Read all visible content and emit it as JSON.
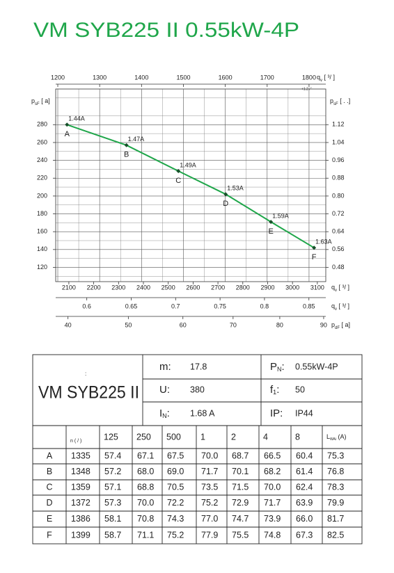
{
  "title": "VM SYB225 II 0.55kW-4P",
  "chart_data": {
    "type": "line",
    "x": [
      1222,
      1364,
      1488,
      1601,
      1709,
      1812
    ],
    "series": [
      {
        "color": "#1fa64a",
        "values": [
          280,
          257,
          228,
          202,
          171,
          142
        ]
      }
    ],
    "point_labels": [
      "A",
      "B",
      "C",
      "D",
      "E",
      "F"
    ],
    "current_labels": [
      "1.44A",
      "1.47A",
      "1.49A",
      "1.53A",
      "1.59A",
      "1.63A"
    ],
    "xlim": [
      1195,
      1840
    ],
    "xticks": [
      1200,
      1300,
      1400,
      1500,
      1600,
      1700,
      1800
    ],
    "xlabel": {
      "main": "q",
      "sub": "v",
      "unit": " [  ³/   ]"
    },
    "xnote": "+1.2  /  '",
    "ylim": [
      104,
      320
    ],
    "yticks": [
      120,
      140,
      160,
      180,
      200,
      220,
      240,
      260,
      280
    ],
    "ylabel": {
      "main": "p",
      "sub": "sF",
      "unit": " [  a]"
    },
    "y2lim": [
      0.416,
      1.28
    ],
    "y2ticks": [
      0.48,
      0.56,
      0.64,
      0.72,
      {
        "value": 0.8,
        "label": "0.80"
      },
      0.88,
      0.96,
      1.04,
      1.12
    ],
    "y2label": {
      "main": "p",
      "sub": "sF",
      "unit": " [                .    .]"
    },
    "grid": true,
    "bottom_axes": [
      {
        "lim": [
          2047,
          3134
        ],
        "ticks": [
          2100,
          2200,
          2300,
          2400,
          2500,
          2600,
          2700,
          2800,
          2900,
          3000,
          3100
        ],
        "label": {
          "main": "q",
          "sub": "v",
          "unit": " [  ³/  ]"
        }
      },
      {
        "lim": [
          0.565,
          0.869
        ],
        "ticks": [
          0.6,
          0.65,
          0.7,
          0.75,
          0.8,
          0.85
        ],
        "label": {
          "main": "q",
          "sub": "v",
          "unit": " [  ³/  ]"
        }
      },
      {
        "lim": [
          38.1,
          90.5
        ],
        "scale": "sqrt",
        "ticks": [
          40,
          50,
          60,
          70,
          80,
          90
        ],
        "label": {
          "main": "p",
          "sub": "dF",
          "unit": " [  a]"
        }
      }
    ]
  },
  "spec": {
    "model": "VM SYB225 II",
    "mark": ":",
    "fields": [
      {
        "label": "m:",
        "value": "17.8"
      },
      {
        "label": "P",
        "sub": "N",
        "after": ":",
        "value": "0.55kW-4P"
      },
      {
        "label": "U:",
        "value": "380"
      },
      {
        "label": "f",
        "sub": "1",
        "after": ":",
        "value": "50"
      },
      {
        "label": "I",
        "sub": "N",
        "after": ":",
        "value": "1.68  A"
      },
      {
        "label": "IP:",
        "value": "IP44"
      }
    ]
  },
  "table": {
    "header": [
      "n (  /  )",
      "125",
      "250",
      "500",
      "1",
      "2",
      "4",
      "8",
      {
        "label": "L",
        "sub": "WAi",
        "after": "     (A)"
      }
    ],
    "rows": [
      [
        "A",
        "1335",
        "57.4",
        "67.1",
        "67.5",
        "70.0",
        "68.7",
        "66.5",
        "60.4",
        "75.3"
      ],
      [
        "B",
        "1348",
        "57.2",
        "68.0",
        "69.0",
        "71.7",
        "70.1",
        "68.2",
        "61.4",
        "76.8"
      ],
      [
        "C",
        "1359",
        "57.1",
        "68.8",
        "70.5",
        "73.5",
        "71.5",
        "70.0",
        "62.4",
        "78.3"
      ],
      [
        "D",
        "1372",
        "57.3",
        "70.0",
        "72.2",
        "75.2",
        "72.9",
        "71.7",
        "63.9",
        "79.9"
      ],
      [
        "E",
        "1386",
        "58.1",
        "70.8",
        "74.3",
        "77.0",
        "74.7",
        "73.9",
        "66.0",
        "81.7"
      ],
      [
        "F",
        "1399",
        "58.7",
        "71.1",
        "75.2",
        "77.9",
        "75.5",
        "74.8",
        "67.3",
        "82.5"
      ]
    ]
  }
}
